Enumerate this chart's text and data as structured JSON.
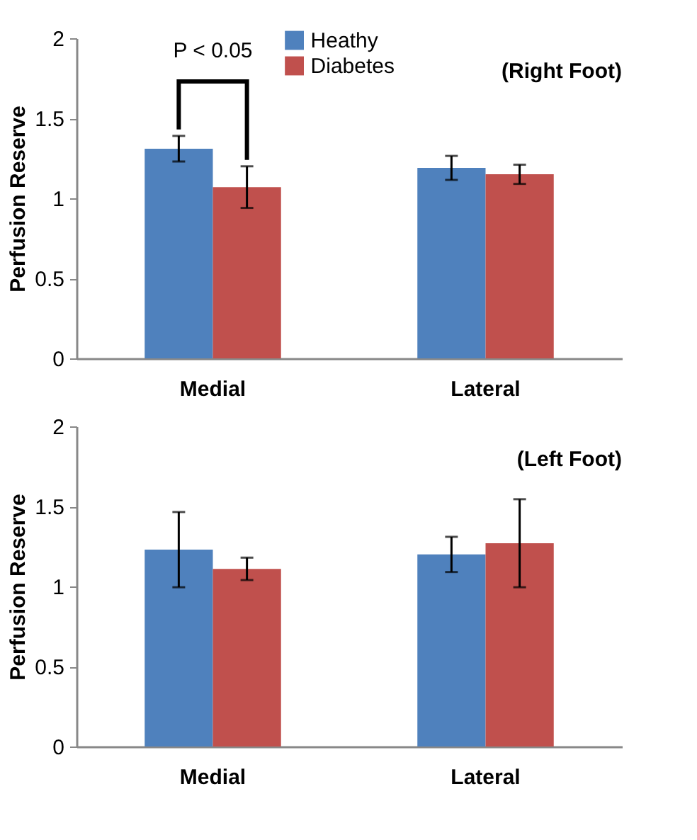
{
  "chart_data": [
    {
      "type": "bar",
      "title": "(Right Foot)",
      "ylabel": "Perfusion Reserve",
      "categories": [
        "Medial",
        "Lateral"
      ],
      "series": [
        {
          "name": "Heathy",
          "color": "#4f81bd",
          "values": [
            1.31,
            1.19
          ],
          "errors": [
            0.08,
            0.075
          ]
        },
        {
          "name": "Diabetes",
          "color": "#c0504d",
          "values": [
            1.07,
            1.15
          ],
          "errors": [
            0.13,
            0.06
          ]
        }
      ],
      "annotations": [
        "P < 0.05"
      ],
      "ylim": [
        0,
        2
      ],
      "yticks": [
        0,
        0.5,
        1,
        1.5,
        2
      ],
      "grid": false,
      "legend": "top"
    },
    {
      "type": "bar",
      "title": "(Left Foot)",
      "ylabel": "Perfusion Reserve",
      "categories": [
        "Medial",
        "Lateral"
      ],
      "series": [
        {
          "name": "Heathy",
          "color": "#4f81bd",
          "values": [
            1.23,
            1.2
          ],
          "errors": [
            0.235,
            0.11
          ]
        },
        {
          "name": "Diabetes",
          "color": "#c0504d",
          "values": [
            1.11,
            1.27
          ],
          "errors": [
            0.07,
            0.275
          ]
        }
      ],
      "ylim": [
        0,
        2
      ],
      "yticks": [
        0,
        0.5,
        1,
        1.5,
        2
      ],
      "grid": false,
      "legend": "top"
    }
  ]
}
